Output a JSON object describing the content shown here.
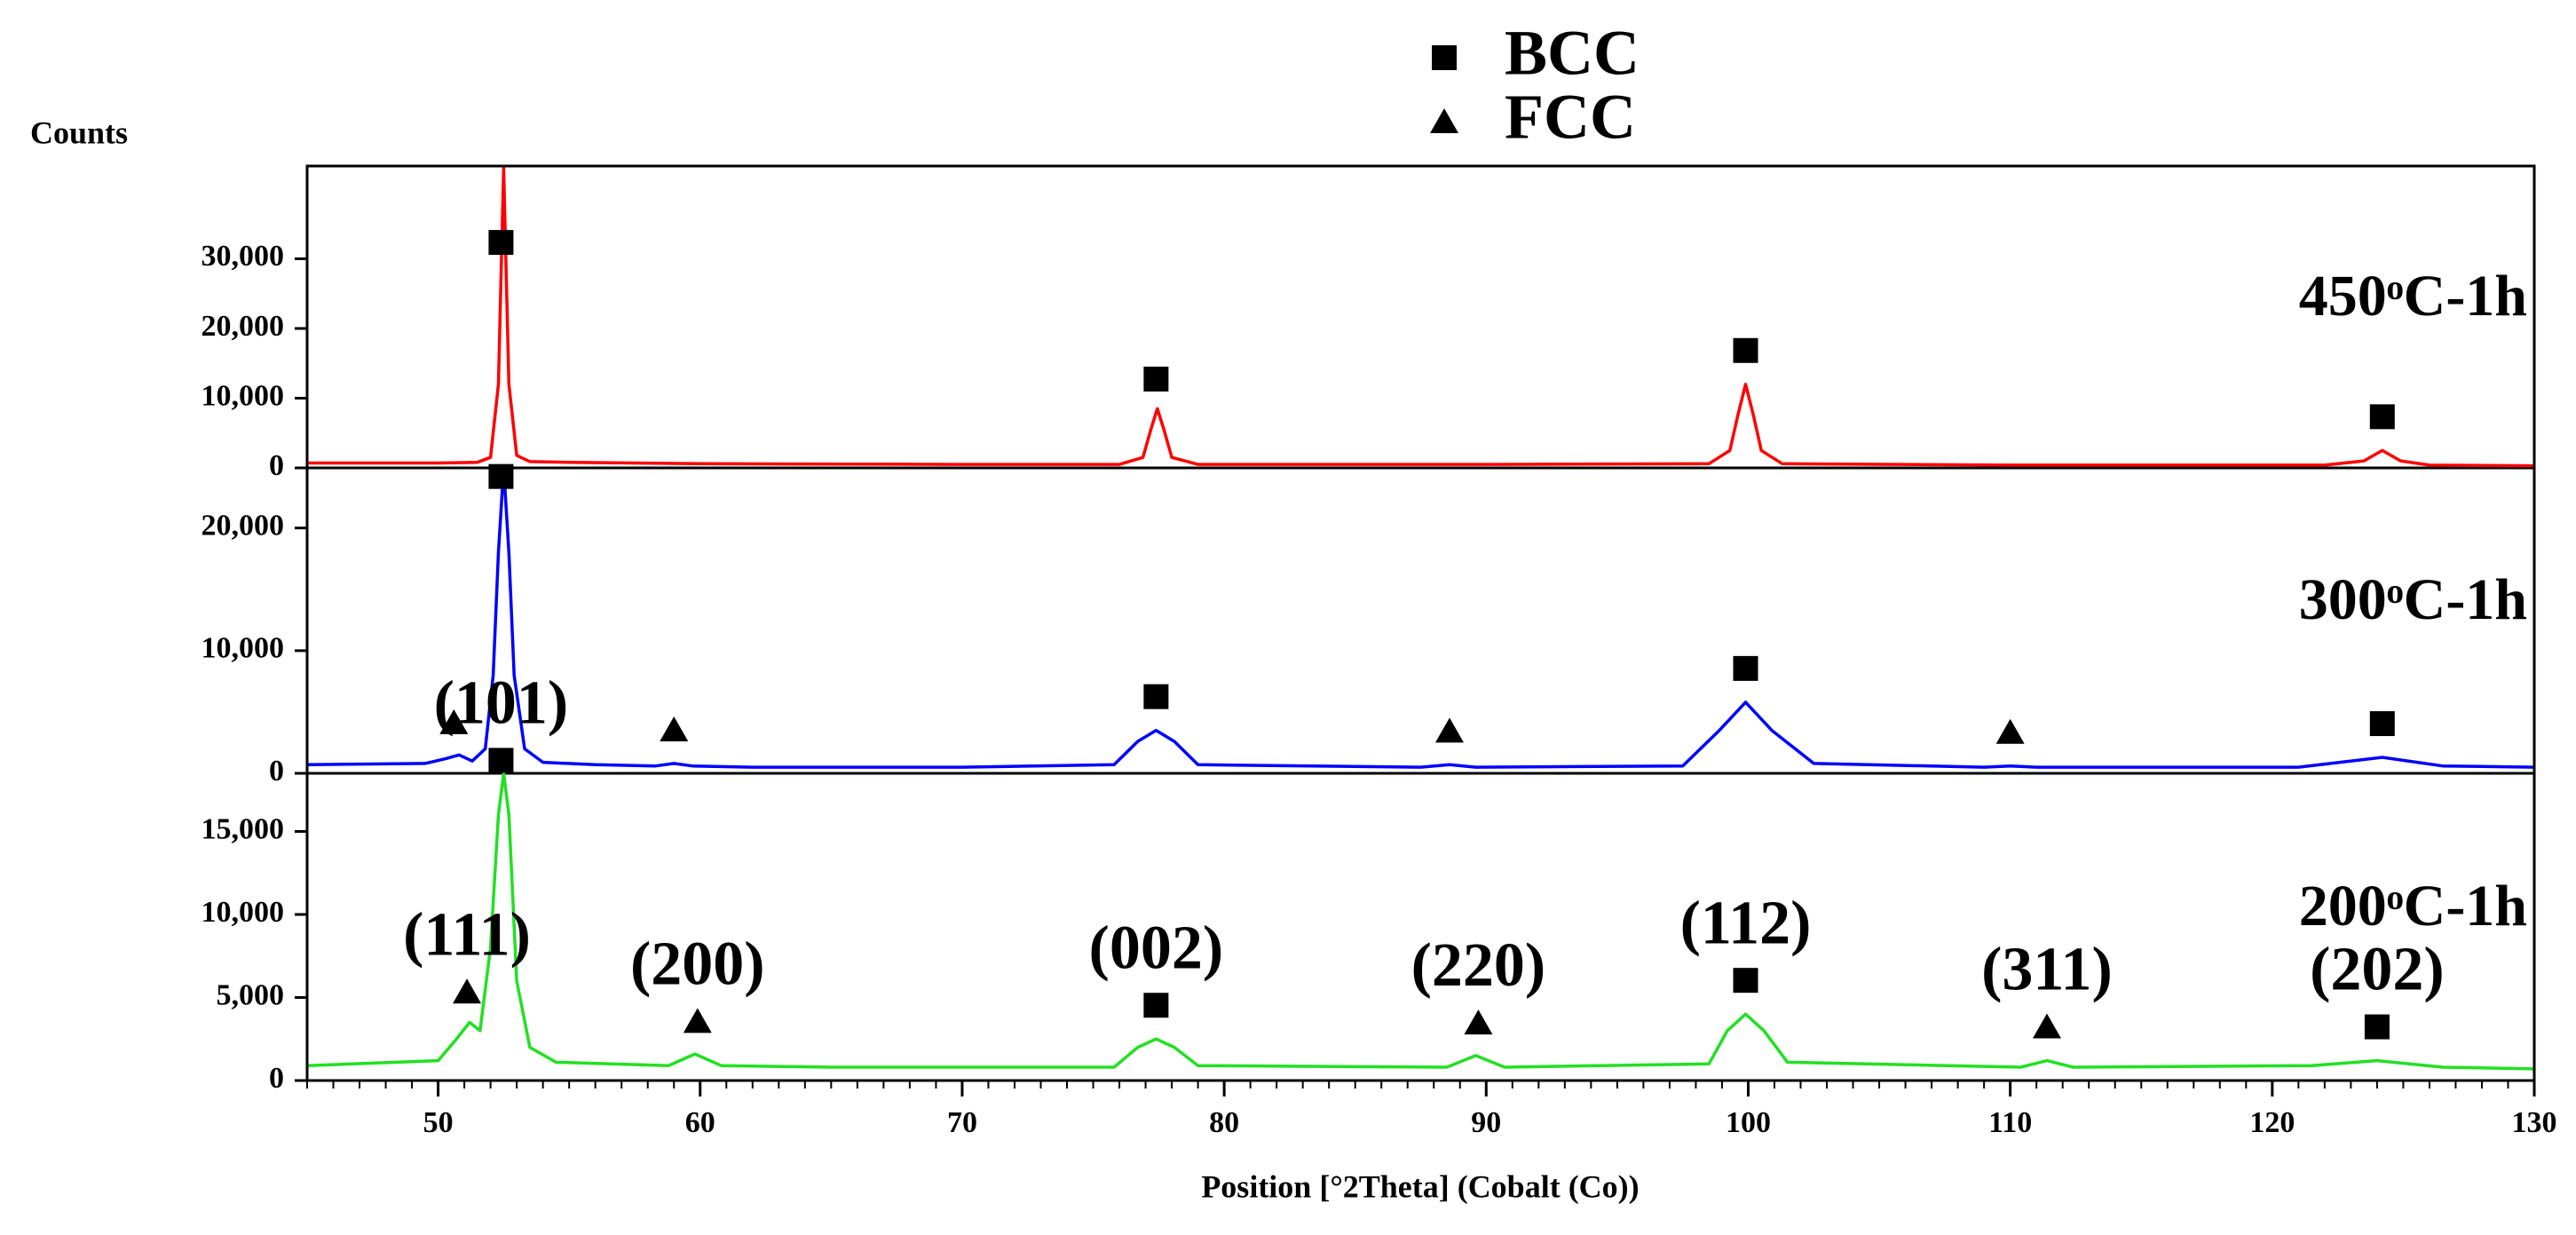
{
  "chart_data": [
    {
      "type": "line",
      "label": "450ᵒC-1h",
      "ylabel": "Counts",
      "legend": [
        {
          "name": "BCC",
          "symbol": "square"
        },
        {
          "name": "FCC",
          "symbol": "triangle"
        }
      ],
      "ylim": [
        0,
        43300
      ],
      "yticks": [
        0,
        {
          "value": 10000,
          "label": "10,000"
        },
        {
          "value": 20000,
          "label": "20,000"
        },
        {
          "value": 30000,
          "label": "30,000"
        }
      ],
      "series": [
        {
          "color": "#ff0000",
          "x": [
            45,
            50,
            51.5,
            52.0,
            52.3,
            52.5,
            52.7,
            53.0,
            53.5,
            55,
            60,
            70,
            76,
            76.9,
            77.2,
            77.45,
            77.7,
            78.0,
            79,
            90,
            98.5,
            99.3,
            99.6,
            99.9,
            100.2,
            100.5,
            101.3,
            110,
            122,
            123.5,
            124.2,
            124.9,
            126,
            130
          ],
          "values": [
            700,
            700,
            800,
            1500,
            12000,
            43000,
            12000,
            1800,
            900,
            800,
            600,
            500,
            500,
            1500,
            5500,
            8500,
            5500,
            1500,
            500,
            500,
            600,
            2500,
            7500,
            12000,
            7500,
            2500,
            600,
            400,
            400,
            1000,
            2500,
            1000,
            400,
            300
          ]
        }
      ],
      "markers": {
        "square": [
          52.4,
          77.4,
          99.9,
          124.2
        ]
      }
    },
    {
      "type": "line",
      "label": "300ᵒC-1h",
      "ylim": [
        0,
        24900
      ],
      "yticks": [
        0,
        {
          "value": 10000,
          "label": "10,000"
        },
        {
          "value": 20000,
          "label": "20,000"
        }
      ],
      "series": [
        {
          "color": "#0000ff",
          "x": [
            45,
            49.5,
            50.3,
            50.8,
            51.3,
            51.8,
            52.1,
            52.3,
            52.5,
            52.7,
            52.9,
            53.3,
            54,
            56,
            58.3,
            59,
            59.7,
            62,
            70,
            75.8,
            76.7,
            77.4,
            78.1,
            79,
            87.5,
            88.6,
            89.6,
            97.5,
            98.9,
            99.9,
            100.9,
            102.5,
            109,
            110,
            111,
            121,
            124.2,
            126.5,
            130
          ],
          "values": [
            700,
            800,
            1200,
            1500,
            1000,
            2000,
            8000,
            18000,
            24900,
            18000,
            8000,
            2000,
            900,
            700,
            600,
            800,
            600,
            500,
            500,
            700,
            2600,
            3500,
            2600,
            700,
            500,
            700,
            500,
            600,
            3500,
            5800,
            3500,
            800,
            500,
            600,
            500,
            500,
            1300,
            600,
            500
          ]
        }
      ],
      "markers": {
        "square": [
          52.4,
          77.4,
          99.9,
          124.2
        ],
        "triangle": [
          50.6,
          59,
          88.6,
          110
        ]
      }
    },
    {
      "type": "line",
      "label": "200ᵒC-1h",
      "ylim": [
        0,
        18500
      ],
      "yticks": [
        0,
        {
          "value": 5000,
          "label": "5,000"
        },
        {
          "value": 10000,
          "label": "10,000"
        },
        {
          "value": 15000,
          "label": "15,000"
        }
      ],
      "xlim": [
        45,
        130
      ],
      "xticks": [
        50,
        60,
        70,
        80,
        90,
        100,
        110,
        120,
        130
      ],
      "xlabel": "Position [°2Theta] (Cobalt (Co))",
      "series": [
        {
          "color": "#22e022",
          "x": [
            45,
            50,
            50.7,
            51.2,
            51.6,
            52.0,
            52.3,
            52.5,
            52.7,
            53.0,
            53.5,
            54.5,
            58.8,
            59.8,
            60.8,
            65,
            75.8,
            76.7,
            77.4,
            78.1,
            79,
            88.5,
            89.6,
            90.7,
            98.5,
            99.2,
            99.9,
            100.6,
            101.5,
            110.4,
            111.4,
            112.4,
            121.5,
            124,
            126.5,
            130
          ],
          "values": [
            900,
            1200,
            2500,
            3500,
            3000,
            8000,
            16000,
            18500,
            16000,
            6000,
            2000,
            1100,
            900,
            1600,
            900,
            800,
            800,
            2000,
            2500,
            2000,
            900,
            800,
            1500,
            800,
            1000,
            3000,
            4000,
            3000,
            1100,
            800,
            1200,
            800,
            900,
            1200,
            800,
            700
          ]
        }
      ],
      "markers": {
        "square": [
          52.4,
          77.4,
          99.9,
          124
        ],
        "triangle": [
          51.1,
          59.9,
          89.7,
          111.4
        ]
      },
      "annotations": [
        {
          "text": "(101)",
          "x": 52.4
        },
        {
          "text": "(111)",
          "x": 51.1
        },
        {
          "text": "(200)",
          "x": 59.9
        },
        {
          "text": "(002)",
          "x": 77.4
        },
        {
          "text": "(220)",
          "x": 89.7
        },
        {
          "text": "(112)",
          "x": 99.9
        },
        {
          "text": "(311)",
          "x": 111.4
        },
        {
          "text": "(202)",
          "x": 124
        }
      ]
    }
  ]
}
